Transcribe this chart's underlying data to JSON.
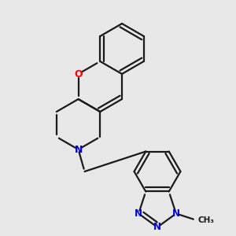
{
  "background_color": "#e8e8e8",
  "bond_color": "#1a1a1a",
  "oxygen_color": "#ff0000",
  "nitrogen_color": "#0000cc",
  "bond_width": 1.6,
  "figsize": [
    3.0,
    3.0
  ],
  "dpi": 100,
  "xlim": [
    0,
    300
  ],
  "ylim": [
    0,
    300
  ]
}
